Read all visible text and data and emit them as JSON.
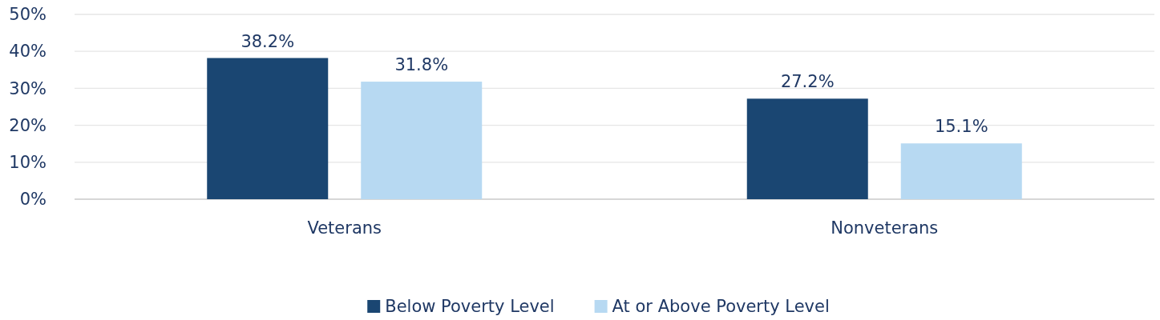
{
  "chart_data": {
    "type": "bar",
    "categories": [
      "Veterans",
      "Nonveterans"
    ],
    "series": [
      {
        "name": "Below Poverty Level",
        "color": "#1a4672",
        "values": [
          38.2,
          27.2
        ]
      },
      {
        "name": "At or Above Poverty Level",
        "color": "#b7d9f2",
        "values": [
          31.8,
          15.1
        ]
      }
    ],
    "ylim": [
      0,
      50
    ],
    "yticks": [
      {
        "value": 0,
        "label": "0%"
      },
      {
        "value": 10,
        "label": "10%"
      },
      {
        "value": 20,
        "label": "20%"
      },
      {
        "value": 30,
        "label": "30%"
      },
      {
        "value": 40,
        "label": "40%"
      },
      {
        "value": 50,
        "label": "50%"
      }
    ],
    "grid": "y",
    "legend": "bottom",
    "value_labels": [
      [
        "38.2%",
        "27.2%"
      ],
      [
        "31.8%",
        "15.1%"
      ]
    ]
  }
}
